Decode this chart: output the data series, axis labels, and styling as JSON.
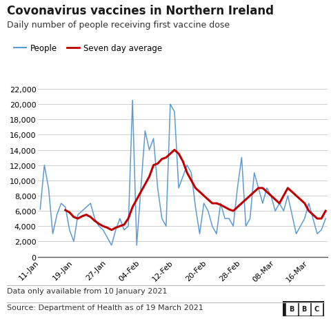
{
  "title": "Covonavirus vaccines in Northern Ireland",
  "subtitle": "Daily number of people receiving first vaccine dose",
  "legend_people": "People",
  "legend_avg": "Seven day average",
  "footnote1": "Data only available from 10 January 2021",
  "footnote2": "Source: Department of Health as of 19 March 2021",
  "people_color": "#5b9bd5",
  "avg_color": "#c00000",
  "background_color": "#ffffff",
  "ylim": [
    0,
    22000
  ],
  "yticks": [
    0,
    2000,
    4000,
    6000,
    8000,
    10000,
    12000,
    14000,
    16000,
    18000,
    20000,
    22000
  ],
  "xtick_labels": [
    "11-Jan",
    "19-Jan",
    "27-Jan",
    "04-Feb",
    "12-Feb",
    "20-Feb",
    "28-Feb",
    "08-Mar",
    "16-Mar"
  ],
  "daily_values": [
    6200,
    12000,
    9000,
    3000,
    5500,
    7000,
    6500,
    3500,
    2000,
    5500,
    6000,
    6500,
    7000,
    5000,
    4000,
    3500,
    2500,
    1500,
    3500,
    5000,
    3500,
    4000,
    20500,
    1500,
    9000,
    16500,
    14000,
    15500,
    9000,
    5000,
    4000,
    20000,
    19000,
    9000,
    10500,
    12000,
    11000,
    6500,
    3000,
    7000,
    6000,
    4000,
    3000,
    7000,
    5000,
    5000,
    4000,
    9000,
    13000,
    4000,
    5000,
    11000,
    9000,
    7000,
    9000,
    8000,
    6000,
    7000,
    6000,
    8000,
    5500,
    3000,
    4000,
    5000,
    7000,
    5000,
    3000,
    3500,
    5000
  ],
  "seven_day_avg": [
    null,
    null,
    null,
    null,
    null,
    null,
    6100,
    5800,
    5200,
    5000,
    5300,
    5500,
    5200,
    4700,
    4300,
    4000,
    3800,
    3500,
    3800,
    4000,
    4200,
    5000,
    6500,
    7500,
    8500,
    9500,
    10500,
    12000,
    12200,
    12800,
    13000,
    13500,
    14000,
    13500,
    12500,
    11000,
    10000,
    9000,
    8500,
    8000,
    7500,
    7000,
    7000,
    6800,
    6500,
    6200,
    6000,
    6500,
    7000,
    7500,
    8000,
    8500,
    9000,
    9000,
    8500,
    8000,
    7500,
    7000,
    8000,
    9000,
    8500,
    8000,
    7500,
    7000,
    6000,
    5500,
    5000,
    5000,
    6000
  ],
  "title_fontsize": 12,
  "subtitle_fontsize": 9,
  "legend_fontsize": 8.5,
  "tick_fontsize": 8,
  "footnote_fontsize": 8
}
